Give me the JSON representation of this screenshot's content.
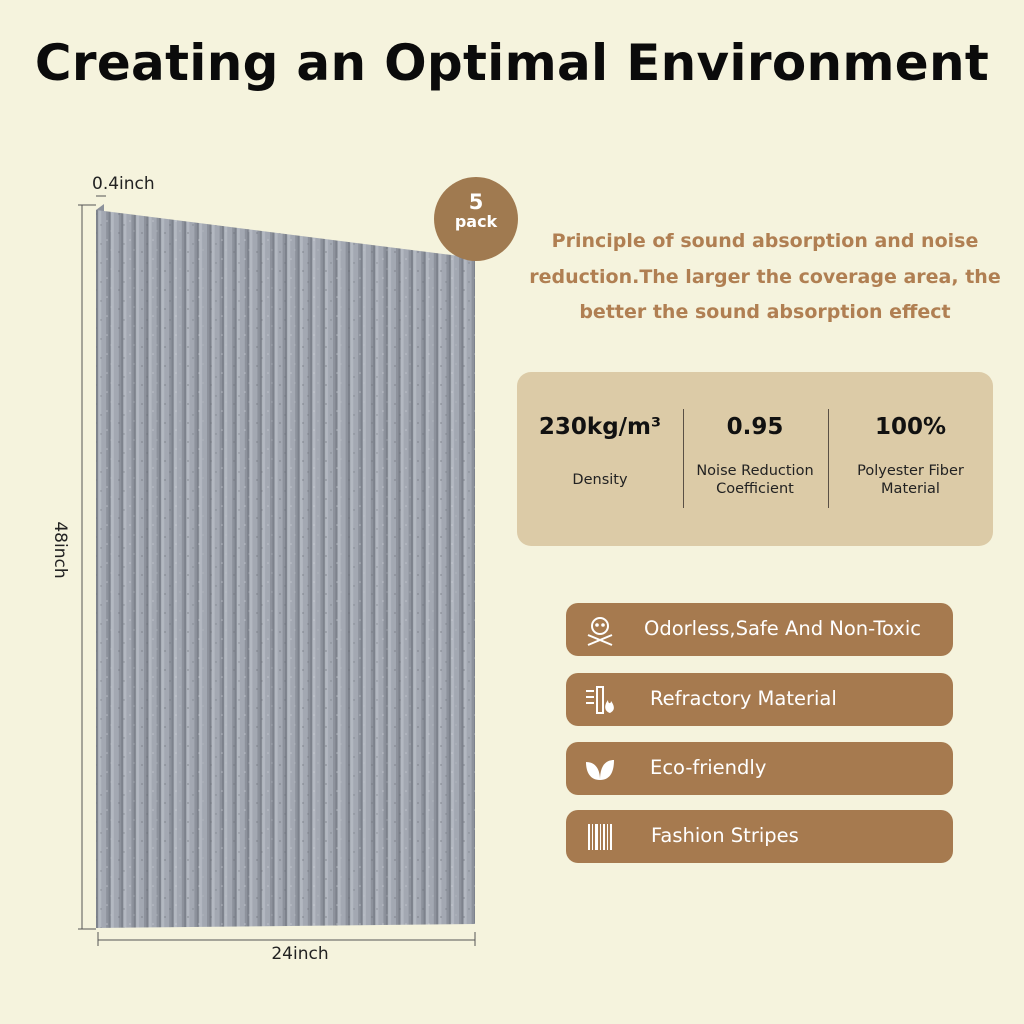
{
  "title": "Creating an Optimal Environment",
  "panel": {
    "thickness_label": "0.4inch",
    "height_label": "48inch",
    "width_label": "24inch"
  },
  "badge": {
    "count": "5",
    "unit": "pack"
  },
  "principle": {
    "line1": "Principle of sound absorption and noise",
    "line2": "reduction.The larger the coverage area, the",
    "line3": "better the sound absorption effect"
  },
  "specs": [
    {
      "value": "230kg/m³",
      "label1": "Density",
      "label2": ""
    },
    {
      "value": "0.95",
      "label1": "Noise Reduction",
      "label2": "Coefficient"
    },
    {
      "value": "100%",
      "label1": "Polyester Fiber",
      "label2": "Material"
    }
  ],
  "features": [
    {
      "icon": "skull-crossbones-icon",
      "label": "Odorless,Safe And Non-Toxic"
    },
    {
      "icon": "fire-resistant-icon",
      "label": "Refractory Material"
    },
    {
      "icon": "leaves-icon",
      "label": "Eco-friendly"
    },
    {
      "icon": "stripes-icon",
      "label": "Fashion Stripes"
    }
  ],
  "colors": {
    "background": "#f5f3dd",
    "accent_brown": "#a67a4f",
    "spec_box": "#dccba7",
    "principle_text": "#b07f52",
    "panel_gray": "#9ea3ad"
  }
}
